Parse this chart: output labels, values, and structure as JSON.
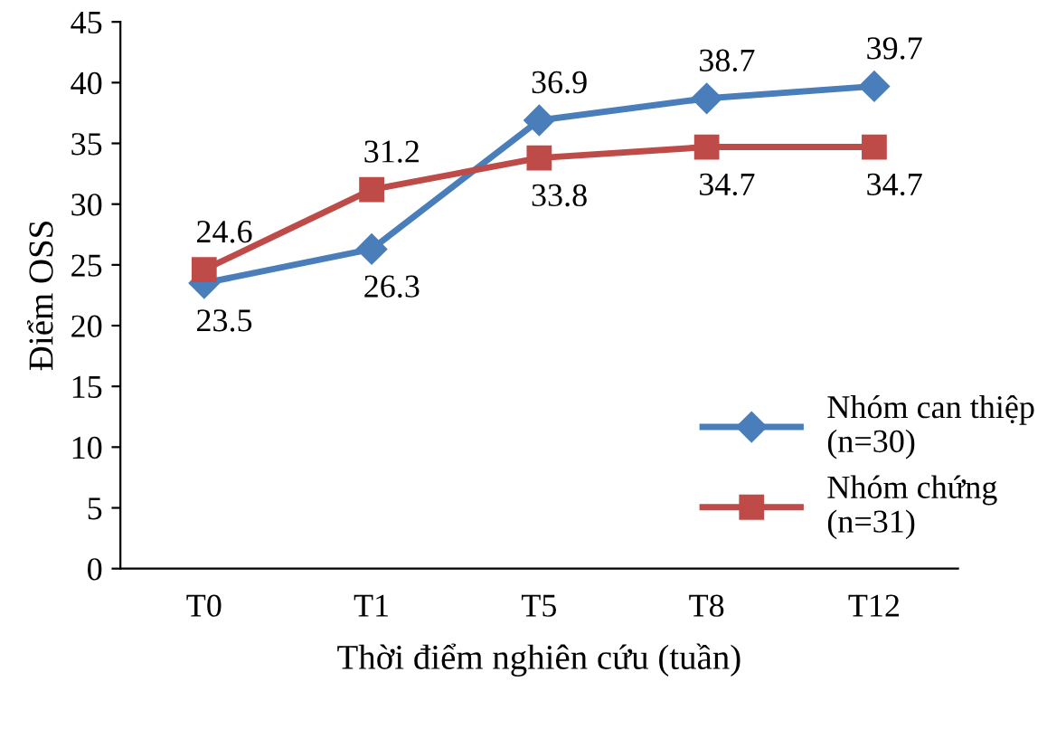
{
  "chart_data": {
    "type": "line",
    "xlabel": "Thời điểm nghiên cứu (tuần)",
    "ylabel": "Điểm OSS",
    "categories": [
      "T0",
      "T1",
      "T5",
      "T8",
      "T12"
    ],
    "series": [
      {
        "name": "Nhóm can thiệp (n=30)",
        "color": "#4a7ebb",
        "values": [
          23.5,
          26.3,
          36.9,
          38.7,
          39.7
        ],
        "marker": "diamond"
      },
      {
        "name": "Nhóm chứng (n=31)",
        "color": "#be4b48",
        "values": [
          24.6,
          31.2,
          33.8,
          34.7,
          34.7
        ],
        "marker": "square"
      }
    ],
    "ylim": [
      0,
      45
    ],
    "yticks": [
      0,
      5,
      10,
      15,
      20,
      25,
      30,
      35,
      40,
      45
    ],
    "grid": false,
    "legend": "bottom right",
    "data_labels": true
  }
}
